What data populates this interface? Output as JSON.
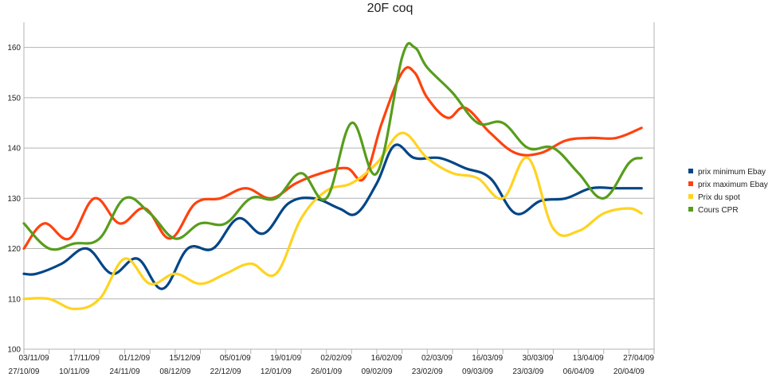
{
  "chart_data": {
    "type": "line",
    "title": "20F coq",
    "xlabel": "",
    "ylabel": "",
    "ylim": [
      100,
      165
    ],
    "yticks": [
      100,
      110,
      120,
      130,
      140,
      150,
      160
    ],
    "grid": "horizontal",
    "legend": "right",
    "x": [
      "27/10/09",
      "03/11/09",
      "10/11/09",
      "17/11/09",
      "24/11/09",
      "01/12/09",
      "08/12/09",
      "15/12/09",
      "22/12/09",
      "05/01/09",
      "12/01/09",
      "19/01/09",
      "26/01/09",
      "02/02/09",
      "09/02/09",
      "16/02/09",
      "23/02/09",
      "02/03/09",
      "09/03/09",
      "16/03/09",
      "23/03/09",
      "30/03/09",
      "06/04/09",
      "13/04/09",
      "20/04/09",
      "27/04/09"
    ],
    "series": [
      {
        "name": "prix minimum Ebay",
        "color": "#004586",
        "points": [
          [
            0,
            115
          ],
          [
            0.5,
            115
          ],
          [
            1.5,
            117
          ],
          [
            2.5,
            120
          ],
          [
            3.5,
            115
          ],
          [
            4.5,
            118
          ],
          [
            5.5,
            112
          ],
          [
            6.5,
            120
          ],
          [
            7.5,
            120
          ],
          [
            8.5,
            126
          ],
          [
            9.5,
            123
          ],
          [
            10.5,
            129
          ],
          [
            11.5,
            130
          ],
          [
            12.5,
            128
          ],
          [
            13.2,
            127
          ],
          [
            14,
            133
          ],
          [
            14.7,
            140.5
          ],
          [
            15.5,
            138
          ],
          [
            16.5,
            138
          ],
          [
            17.5,
            136
          ],
          [
            18.5,
            134
          ],
          [
            19.5,
            127
          ],
          [
            20.5,
            129.5
          ],
          [
            21.5,
            130
          ],
          [
            22.5,
            132
          ],
          [
            23.5,
            132
          ],
          [
            24.5,
            132
          ]
        ]
      },
      {
        "name": "prix maximum Ebay",
        "color": "#ff420e",
        "points": [
          [
            0,
            120
          ],
          [
            0.8,
            125
          ],
          [
            1.8,
            122
          ],
          [
            2.8,
            130
          ],
          [
            3.8,
            125
          ],
          [
            4.8,
            128
          ],
          [
            5.8,
            122
          ],
          [
            6.8,
            129
          ],
          [
            7.8,
            130
          ],
          [
            8.8,
            132
          ],
          [
            9.8,
            130
          ],
          [
            10.8,
            133
          ],
          [
            11.8,
            135
          ],
          [
            12.8,
            136
          ],
          [
            13.5,
            134
          ],
          [
            14.2,
            145
          ],
          [
            15,
            155
          ],
          [
            15.5,
            155
          ],
          [
            16,
            150
          ],
          [
            16.8,
            146
          ],
          [
            17.5,
            148
          ],
          [
            18.5,
            143
          ],
          [
            19.5,
            139
          ],
          [
            20.5,
            139
          ],
          [
            21.5,
            141.5
          ],
          [
            22.5,
            142
          ],
          [
            23.5,
            142
          ],
          [
            24.5,
            144
          ]
        ]
      },
      {
        "name": "Prix du spot",
        "color": "#ffd320",
        "points": [
          [
            0,
            110
          ],
          [
            1,
            110
          ],
          [
            2,
            108
          ],
          [
            3,
            110
          ],
          [
            4,
            118
          ],
          [
            5,
            113
          ],
          [
            6,
            115
          ],
          [
            7,
            113
          ],
          [
            8,
            115
          ],
          [
            9,
            117
          ],
          [
            10,
            115
          ],
          [
            11,
            126
          ],
          [
            12,
            131.5
          ],
          [
            13,
            133
          ],
          [
            14,
            137
          ],
          [
            15,
            143
          ],
          [
            16,
            138
          ],
          [
            17,
            135
          ],
          [
            18,
            134
          ],
          [
            19,
            130
          ],
          [
            20,
            138
          ],
          [
            21,
            124
          ],
          [
            22,
            123.5
          ],
          [
            23,
            127
          ],
          [
            24,
            128
          ],
          [
            24.5,
            127
          ]
        ]
      },
      {
        "name": "Cours CPR",
        "color": "#579d1c",
        "points": [
          [
            0,
            125
          ],
          [
            1,
            120
          ],
          [
            2,
            121
          ],
          [
            3,
            122
          ],
          [
            4,
            130
          ],
          [
            5,
            127
          ],
          [
            6,
            122
          ],
          [
            7,
            125
          ],
          [
            8,
            125
          ],
          [
            9,
            130
          ],
          [
            10,
            130
          ],
          [
            11,
            135
          ],
          [
            12,
            130
          ],
          [
            13,
            145
          ],
          [
            14,
            135
          ],
          [
            15,
            158
          ],
          [
            15.5,
            160
          ],
          [
            16,
            156
          ],
          [
            17,
            151
          ],
          [
            18,
            145
          ],
          [
            19,
            145
          ],
          [
            20,
            140
          ],
          [
            21,
            140
          ],
          [
            22,
            135
          ],
          [
            23,
            130
          ],
          [
            24,
            137
          ],
          [
            24.5,
            138
          ]
        ]
      }
    ]
  }
}
